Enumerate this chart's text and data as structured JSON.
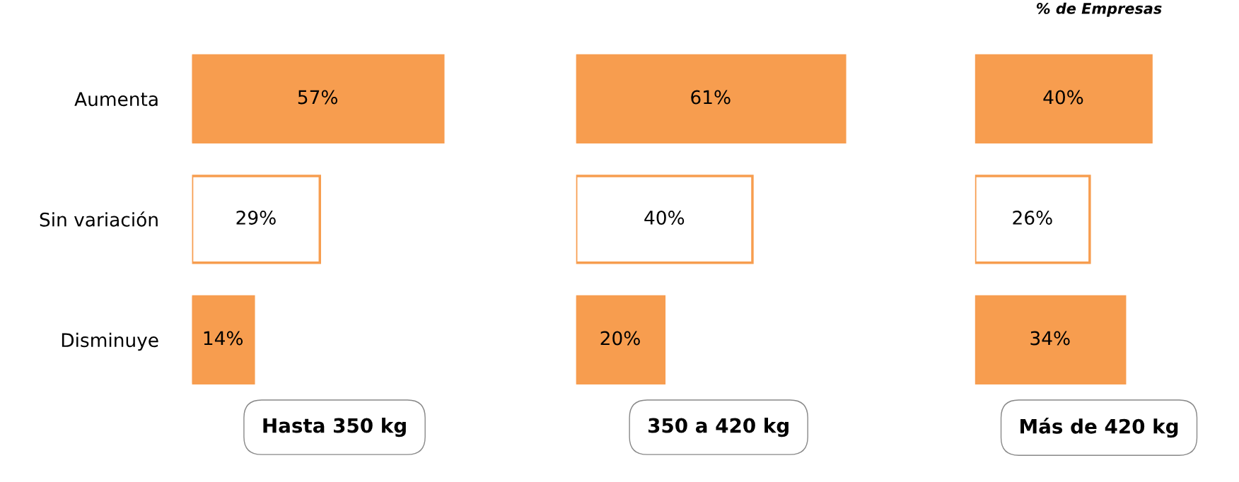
{
  "chart_data": [
    {
      "type": "bar",
      "orientation": "horizontal",
      "categories": [
        "Aumenta",
        "Sin variación",
        "Disminuye"
      ],
      "values": [
        57,
        29,
        14
      ],
      "value_labels": [
        "57%",
        "29%",
        "14%"
      ],
      "colors": [
        "#f79d4f",
        "#ffffff",
        "#f79d4f"
      ],
      "xlabel": "Hasta 350 kg",
      "tick_labels": "y"
    },
    {
      "type": "bar",
      "orientation": "horizontal",
      "categories": [
        null,
        null,
        null
      ],
      "values": [
        61,
        40,
        20
      ],
      "value_labels": [
        "61%",
        "40%",
        "20%"
      ],
      "colors": [
        "#f79d4f",
        "#ffffff",
        "#f79d4f"
      ],
      "xlabel": "350 a 420 kg",
      "tick_labels": false
    },
    {
      "type": "bar",
      "orientation": "horizontal",
      "categories": [
        null,
        null,
        null
      ],
      "values": [
        40,
        26,
        34
      ],
      "value_labels": [
        "40%",
        "26%",
        "34%"
      ],
      "colors": [
        "#f79d4f",
        "#ffffff",
        "#f79d4f"
      ],
      "xlabel": "Más de 420 kg",
      "tick_labels": false,
      "annotations": [
        "% de Empresas"
      ]
    }
  ]
}
